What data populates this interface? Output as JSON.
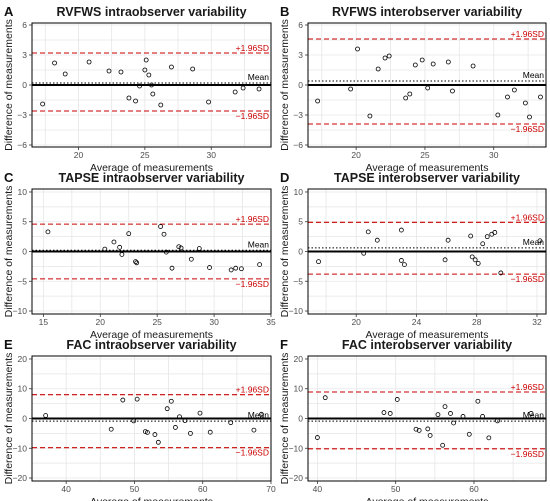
{
  "chart_data": [
    {
      "type": "scatter",
      "letter": "A",
      "title": "RVFWS intraobserver variability",
      "xlabel": "Average of measurements",
      "ylabel": "Difference of measurements",
      "xlim": [
        16.5,
        34.5
      ],
      "ylim": [
        -6.2,
        6.2
      ],
      "xticks": [
        20,
        25,
        30
      ],
      "yticks": [
        -6,
        -3,
        0,
        3,
        6
      ],
      "mean": 0.2,
      "upper": 3.2,
      "lower": -2.6,
      "upper_label": "+1.96SD",
      "lower_label": "−1.96SD",
      "mean_label": "Mean",
      "grid": true,
      "points": [
        {
          "x": 17.3,
          "y": -1.9
        },
        {
          "x": 18.2,
          "y": 2.2
        },
        {
          "x": 19.0,
          "y": 1.1
        },
        {
          "x": 20.8,
          "y": 2.3
        },
        {
          "x": 22.3,
          "y": 1.4
        },
        {
          "x": 23.2,
          "y": 1.3
        },
        {
          "x": 23.8,
          "y": -1.3
        },
        {
          "x": 24.3,
          "y": -1.6
        },
        {
          "x": 24.6,
          "y": -0.1
        },
        {
          "x": 25.0,
          "y": 1.5
        },
        {
          "x": 25.1,
          "y": 2.5
        },
        {
          "x": 25.3,
          "y": 1.0
        },
        {
          "x": 25.5,
          "y": 0.0
        },
        {
          "x": 25.6,
          "y": -0.9
        },
        {
          "x": 26.2,
          "y": -2.0
        },
        {
          "x": 27.0,
          "y": 1.8
        },
        {
          "x": 28.6,
          "y": 1.6
        },
        {
          "x": 29.8,
          "y": -1.7
        },
        {
          "x": 31.8,
          "y": -0.7
        },
        {
          "x": 32.4,
          "y": -0.3
        },
        {
          "x": 33.6,
          "y": -0.4
        }
      ]
    },
    {
      "type": "scatter",
      "letter": "B",
      "title": "RVFWS interobserver variability",
      "xlabel": "Average of measurements",
      "ylabel": "Difference of measurements",
      "xlim": [
        16.5,
        33.8
      ],
      "ylim": [
        -6.2,
        6.2
      ],
      "xticks": [
        20,
        25,
        30
      ],
      "yticks": [
        -6,
        -3,
        0,
        3,
        6
      ],
      "mean": 0.4,
      "upper": 4.6,
      "lower": -3.9,
      "upper_label": "+1.96SD",
      "lower_label": "−1.96SD",
      "mean_label": "Mean",
      "grid": true,
      "points": [
        {
          "x": 17.2,
          "y": -1.6
        },
        {
          "x": 19.6,
          "y": -0.4
        },
        {
          "x": 20.1,
          "y": 3.6
        },
        {
          "x": 21.0,
          "y": -3.1
        },
        {
          "x": 21.6,
          "y": 1.6
        },
        {
          "x": 22.1,
          "y": 2.7
        },
        {
          "x": 22.4,
          "y": 2.9
        },
        {
          "x": 23.6,
          "y": -1.3
        },
        {
          "x": 23.9,
          "y": -0.9
        },
        {
          "x": 24.3,
          "y": 2.0
        },
        {
          "x": 24.8,
          "y": 2.5
        },
        {
          "x": 25.2,
          "y": -0.3
        },
        {
          "x": 25.6,
          "y": 2.1
        },
        {
          "x": 26.7,
          "y": 2.3
        },
        {
          "x": 27.0,
          "y": -0.6
        },
        {
          "x": 28.5,
          "y": 1.9
        },
        {
          "x": 30.3,
          "y": -3.0
        },
        {
          "x": 31.0,
          "y": -1.2
        },
        {
          "x": 31.5,
          "y": -0.5
        },
        {
          "x": 32.3,
          "y": -1.8
        },
        {
          "x": 32.6,
          "y": -3.2
        },
        {
          "x": 33.4,
          "y": -1.2
        }
      ]
    },
    {
      "type": "scatter",
      "letter": "C",
      "title": "TAPSE intraobserver variability",
      "xlabel": "Average of measurements",
      "ylabel": "Difference of measurements",
      "xlim": [
        14,
        35
      ],
      "ylim": [
        -10.5,
        10.5
      ],
      "xticks": [
        15,
        20,
        25,
        30,
        35
      ],
      "yticks": [
        -10,
        -5,
        0,
        5,
        10
      ],
      "mean": 0.2,
      "upper": 4.6,
      "lower": -4.6,
      "upper_label": "+1.96SD",
      "lower_label": "−1.96SD",
      "mean_label": "Mean",
      "grid": true,
      "points": [
        {
          "x": 15.4,
          "y": 3.3
        },
        {
          "x": 20.4,
          "y": 0.4
        },
        {
          "x": 21.2,
          "y": 1.6
        },
        {
          "x": 21.7,
          "y": 0.7
        },
        {
          "x": 21.9,
          "y": -0.5
        },
        {
          "x": 22.5,
          "y": 3.0
        },
        {
          "x": 23.1,
          "y": -1.7
        },
        {
          "x": 23.2,
          "y": -1.9
        },
        {
          "x": 25.3,
          "y": 4.2
        },
        {
          "x": 25.6,
          "y": 2.9
        },
        {
          "x": 25.8,
          "y": -0.1
        },
        {
          "x": 26.3,
          "y": -2.8
        },
        {
          "x": 26.9,
          "y": 0.8
        },
        {
          "x": 27.1,
          "y": 0.6
        },
        {
          "x": 28.0,
          "y": -1.3
        },
        {
          "x": 28.7,
          "y": 0.5
        },
        {
          "x": 29.6,
          "y": -2.7
        },
        {
          "x": 31.5,
          "y": -3.1
        },
        {
          "x": 31.9,
          "y": -2.8
        },
        {
          "x": 32.4,
          "y": -2.9
        },
        {
          "x": 34.0,
          "y": -2.2
        }
      ]
    },
    {
      "type": "scatter",
      "letter": "D",
      "title": "TAPSE interobserver variability",
      "xlabel": "Average of measurements",
      "ylabel": "Difference of measurements",
      "xlim": [
        16.8,
        32.6
      ],
      "ylim": [
        -10.5,
        10.5
      ],
      "xticks": [
        20,
        24,
        28,
        32
      ],
      "yticks": [
        -10,
        -5,
        0,
        5,
        10
      ],
      "mean": 0.6,
      "upper": 4.9,
      "lower": -3.8,
      "upper_label": "+1.96SD",
      "lower_label": "−1.96SD",
      "mean_label": "Mean",
      "grid": true,
      "points": [
        {
          "x": 17.5,
          "y": -1.7
        },
        {
          "x": 20.5,
          "y": -0.3
        },
        {
          "x": 20.8,
          "y": 3.3
        },
        {
          "x": 21.4,
          "y": 1.9
        },
        {
          "x": 23.0,
          "y": -1.5
        },
        {
          "x": 23.0,
          "y": 3.6
        },
        {
          "x": 23.2,
          "y": -2.2
        },
        {
          "x": 25.9,
          "y": -1.4
        },
        {
          "x": 26.1,
          "y": 1.9
        },
        {
          "x": 27.6,
          "y": 2.6
        },
        {
          "x": 27.7,
          "y": -0.9
        },
        {
          "x": 27.9,
          "y": -1.4
        },
        {
          "x": 28.1,
          "y": -2.0
        },
        {
          "x": 28.4,
          "y": 1.3
        },
        {
          "x": 28.7,
          "y": 2.5
        },
        {
          "x": 29.0,
          "y": 2.9
        },
        {
          "x": 29.2,
          "y": 3.2
        },
        {
          "x": 29.6,
          "y": -3.6
        },
        {
          "x": 32.2,
          "y": 1.8
        }
      ]
    },
    {
      "type": "scatter",
      "letter": "E",
      "title": "FAC intraobserver variability",
      "xlabel": "Average of measurements",
      "ylabel": "Difference of measurements",
      "xlim": [
        35,
        70
      ],
      "ylim": [
        -21,
        21
      ],
      "xticks": [
        40,
        50,
        60,
        70
      ],
      "yticks": [
        -20,
        -10,
        0,
        10,
        20
      ],
      "mean": -0.9,
      "upper": 8.0,
      "lower": -9.8,
      "upper_label": "+1.96SD",
      "lower_label": "−1.96SD",
      "mean_label": "Mean",
      "grid": true,
      "points": [
        {
          "x": 37.0,
          "y": 1.0
        },
        {
          "x": 46.6,
          "y": -3.6
        },
        {
          "x": 48.3,
          "y": 6.2
        },
        {
          "x": 49.9,
          "y": -0.8
        },
        {
          "x": 50.4,
          "y": 6.5
        },
        {
          "x": 51.6,
          "y": -4.4
        },
        {
          "x": 51.9,
          "y": -4.7
        },
        {
          "x": 53.0,
          "y": -5.4
        },
        {
          "x": 53.5,
          "y": -8.0
        },
        {
          "x": 54.8,
          "y": 3.3
        },
        {
          "x": 55.4,
          "y": 5.8
        },
        {
          "x": 56.0,
          "y": -3.0
        },
        {
          "x": 56.6,
          "y": 0.6
        },
        {
          "x": 57.4,
          "y": -0.7
        },
        {
          "x": 58.2,
          "y": -5.0
        },
        {
          "x": 59.6,
          "y": 1.8
        },
        {
          "x": 61.1,
          "y": -4.6
        },
        {
          "x": 64.1,
          "y": -1.4
        },
        {
          "x": 67.5,
          "y": -3.9
        },
        {
          "x": 68.6,
          "y": 1.4
        }
      ]
    },
    {
      "type": "scatter",
      "letter": "F",
      "title": "FAC interobserver variability",
      "xlabel": "Average of measurements",
      "ylabel": "Difference of measurements",
      "xlim": [
        38.8,
        69.2
      ],
      "ylim": [
        -21,
        21
      ],
      "xticks": [
        40,
        50,
        60
      ],
      "yticks": [
        -20,
        -10,
        0,
        10,
        20
      ],
      "mean": -0.9,
      "upper": 8.9,
      "lower": -10.2,
      "upper_label": "+1.96SD",
      "lower_label": "−1.96SD",
      "mean_label": "Mean",
      "grid": true,
      "points": [
        {
          "x": 40.0,
          "y": -6.4
        },
        {
          "x": 41.0,
          "y": 7.0
        },
        {
          "x": 48.5,
          "y": 2.0
        },
        {
          "x": 49.3,
          "y": 1.7
        },
        {
          "x": 50.2,
          "y": 6.4
        },
        {
          "x": 52.6,
          "y": -3.6
        },
        {
          "x": 53.0,
          "y": -4.0
        },
        {
          "x": 54.1,
          "y": -3.5
        },
        {
          "x": 54.4,
          "y": -5.7
        },
        {
          "x": 55.4,
          "y": 1.3
        },
        {
          "x": 56.0,
          "y": -9.0
        },
        {
          "x": 56.3,
          "y": 4.0
        },
        {
          "x": 57.0,
          "y": 1.7
        },
        {
          "x": 57.4,
          "y": -1.5
        },
        {
          "x": 58.6,
          "y": 0.7
        },
        {
          "x": 59.4,
          "y": -5.3
        },
        {
          "x": 60.5,
          "y": 5.8
        },
        {
          "x": 61.1,
          "y": 0.7
        },
        {
          "x": 61.9,
          "y": -6.5
        },
        {
          "x": 63.0,
          "y": -0.8
        },
        {
          "x": 67.3,
          "y": 1.7
        }
      ]
    }
  ],
  "colors": {
    "limit_line": "#cc0000",
    "mean_line": "#000000",
    "zero_line": "#000000",
    "point_stroke": "#000000",
    "grid_line": "#e6e6e6",
    "panel_border": "#000000"
  }
}
